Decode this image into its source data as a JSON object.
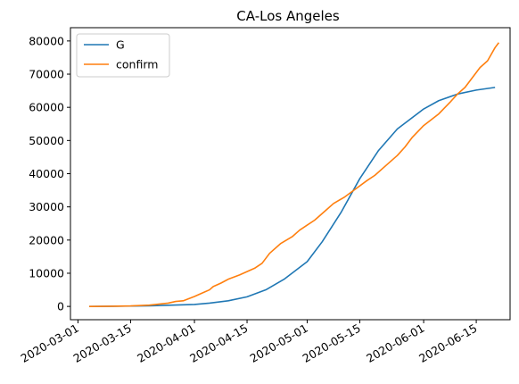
{
  "chart_data": {
    "type": "line",
    "title": "CA-Los Angeles",
    "xlabel": "",
    "ylabel": "",
    "x_axis": {
      "type": "date",
      "range": [
        "2020-02-28",
        "2020-06-24"
      ],
      "ticks": [
        "2020-03-01",
        "2020-03-15",
        "2020-04-01",
        "2020-04-15",
        "2020-05-01",
        "2020-05-15",
        "2020-06-01",
        "2020-06-15"
      ]
    },
    "y_axis": {
      "range": [
        -4000,
        84000
      ],
      "ticks": [
        0,
        10000,
        20000,
        30000,
        40000,
        50000,
        60000,
        70000,
        80000
      ]
    },
    "grid": false,
    "legend_position": "upper-left",
    "series": [
      {
        "name": "G",
        "color": "#1f77b4",
        "points": [
          [
            "2020-03-04",
            0
          ],
          [
            "2020-03-15",
            100
          ],
          [
            "2020-03-20",
            200
          ],
          [
            "2020-03-25",
            350
          ],
          [
            "2020-04-01",
            600
          ],
          [
            "2020-04-05",
            1000
          ],
          [
            "2020-04-10",
            1700
          ],
          [
            "2020-04-15",
            2900
          ],
          [
            "2020-04-20",
            5000
          ],
          [
            "2020-04-25",
            8300
          ],
          [
            "2020-05-01",
            13500
          ],
          [
            "2020-05-05",
            19500
          ],
          [
            "2020-05-10",
            28300
          ],
          [
            "2020-05-15",
            38500
          ],
          [
            "2020-05-20",
            47000
          ],
          [
            "2020-05-25",
            53500
          ],
          [
            "2020-06-01",
            59500
          ],
          [
            "2020-06-05",
            62000
          ],
          [
            "2020-06-10",
            64000
          ],
          [
            "2020-06-15",
            65200
          ],
          [
            "2020-06-20",
            66000
          ]
        ]
      },
      {
        "name": "confirm",
        "color": "#ff7f0e",
        "points": [
          [
            "2020-03-04",
            0
          ],
          [
            "2020-03-10",
            50
          ],
          [
            "2020-03-15",
            150
          ],
          [
            "2020-03-20",
            400
          ],
          [
            "2020-03-25",
            1000
          ],
          [
            "2020-03-27",
            1500
          ],
          [
            "2020-03-29",
            1700
          ],
          [
            "2020-04-01",
            3000
          ],
          [
            "2020-04-03",
            4000
          ],
          [
            "2020-04-05",
            5000
          ],
          [
            "2020-04-06",
            6000
          ],
          [
            "2020-04-08",
            7000
          ],
          [
            "2020-04-10",
            8200
          ],
          [
            "2020-04-13",
            9500
          ],
          [
            "2020-04-15",
            10500
          ],
          [
            "2020-04-17",
            11500
          ],
          [
            "2020-04-19",
            13000
          ],
          [
            "2020-04-21",
            16000
          ],
          [
            "2020-04-24",
            19000
          ],
          [
            "2020-04-27",
            21000
          ],
          [
            "2020-04-29",
            23000
          ],
          [
            "2020-05-01",
            24500
          ],
          [
            "2020-05-03",
            26000
          ],
          [
            "2020-05-06",
            29000
          ],
          [
            "2020-05-08",
            31000
          ],
          [
            "2020-05-11",
            33000
          ],
          [
            "2020-05-14",
            35500
          ],
          [
            "2020-05-17",
            38000
          ],
          [
            "2020-05-19",
            39500
          ],
          [
            "2020-05-22",
            42500
          ],
          [
            "2020-05-25",
            45500
          ],
          [
            "2020-05-27",
            48000
          ],
          [
            "2020-05-29",
            51000
          ],
          [
            "2020-06-01",
            54500
          ],
          [
            "2020-06-05",
            58000
          ],
          [
            "2020-06-08",
            61500
          ],
          [
            "2020-06-10",
            64000
          ],
          [
            "2020-06-12",
            66000
          ],
          [
            "2020-06-14",
            69000
          ],
          [
            "2020-06-16",
            72000
          ],
          [
            "2020-06-18",
            74000
          ],
          [
            "2020-06-19",
            76000
          ],
          [
            "2020-06-20",
            78000
          ],
          [
            "2020-06-21",
            79500
          ]
        ]
      }
    ]
  }
}
